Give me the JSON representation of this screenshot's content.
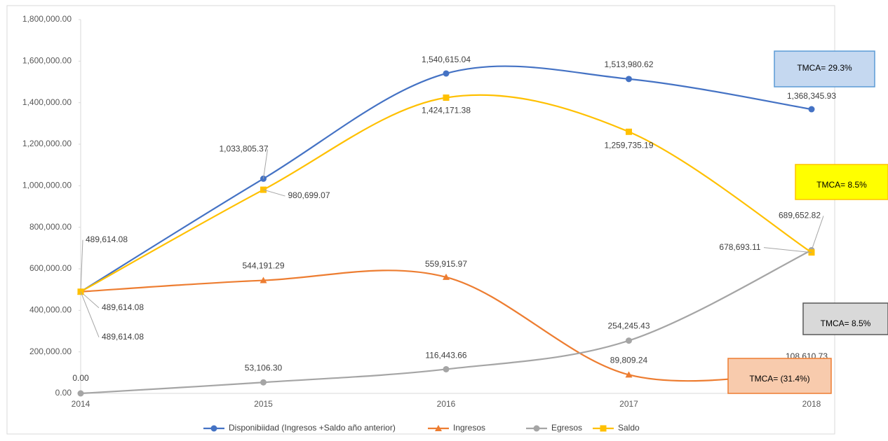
{
  "chart_data": {
    "type": "line",
    "categories": [
      "2014",
      "2015",
      "2016",
      "2017",
      "2018"
    ],
    "ylim": [
      0,
      1800000
    ],
    "yticks": [
      {
        "value": 0,
        "label": "0.00"
      },
      {
        "value": 200000,
        "label": "200,000.00"
      },
      {
        "value": 400000,
        "label": "400,000.00"
      },
      {
        "value": 600000,
        "label": "600,000.00"
      },
      {
        "value": 800000,
        "label": "800,000.00"
      },
      {
        "value": 1000000,
        "label": "1,000,000.00"
      },
      {
        "value": 1200000,
        "label": "1,200,000.00"
      },
      {
        "value": 1400000,
        "label": "1,400,000.00"
      },
      {
        "value": 1600000,
        "label": "1,600,000.00"
      },
      {
        "value": 1800000,
        "label": "1,800,000.00"
      }
    ],
    "smooth": true,
    "legend": "bottom",
    "series": [
      {
        "name": "Disponibiidad (Ingresos +Saldo año anterior)",
        "color": "#4472c4",
        "marker": "circle",
        "values": [
          489614.08,
          1033805.37,
          1540615.04,
          1513980.62,
          1368345.93
        ],
        "value_labels": [
          "489,614.08",
          "1,033,805.37",
          "1,540,615.04",
          "1,513,980.62",
          "1,368,345.93"
        ]
      },
      {
        "name": "Ingresos",
        "color": "#ed7d31",
        "marker": "triangle",
        "values": [
          489614.08,
          544191.29,
          559915.97,
          89809.24,
          108610.73
        ],
        "value_labels": [
          "489,614.08",
          "544,191.29",
          "559,915.97",
          "89,809.24",
          "108,610.73"
        ]
      },
      {
        "name": "Egresos",
        "color": "#a5a5a5",
        "marker": "circle",
        "values": [
          0,
          53106.3,
          116443.66,
          254245.43,
          689652.82
        ],
        "value_labels": [
          "0.00",
          "53,106.30",
          "116,443.66",
          "254,245.43",
          "689,652.82"
        ]
      },
      {
        "name": "Saldo",
        "color": "#ffc000",
        "marker": "square",
        "values": [
          489614.08,
          980699.07,
          1424171.38,
          1259735.19,
          678693.11
        ],
        "value_labels": [
          "489,614.08",
          "980,699.07",
          "1,424,171.38",
          "1,259,735.19",
          "678,693.11"
        ]
      }
    ],
    "annotations": [
      {
        "text": "TMCA= 29.3%",
        "color": "#c5d8f0",
        "border": "#5b9bd5"
      },
      {
        "text": "TMCA= 8.5%",
        "color": "#ffff00",
        "border": "#ffc000"
      },
      {
        "text": "TMCA= 8.5%",
        "color": "#d9d9d9",
        "border": "#595959"
      },
      {
        "text": "TMCA= (31.4%)",
        "color": "#f8cbad",
        "border": "#ed7d31"
      }
    ]
  }
}
